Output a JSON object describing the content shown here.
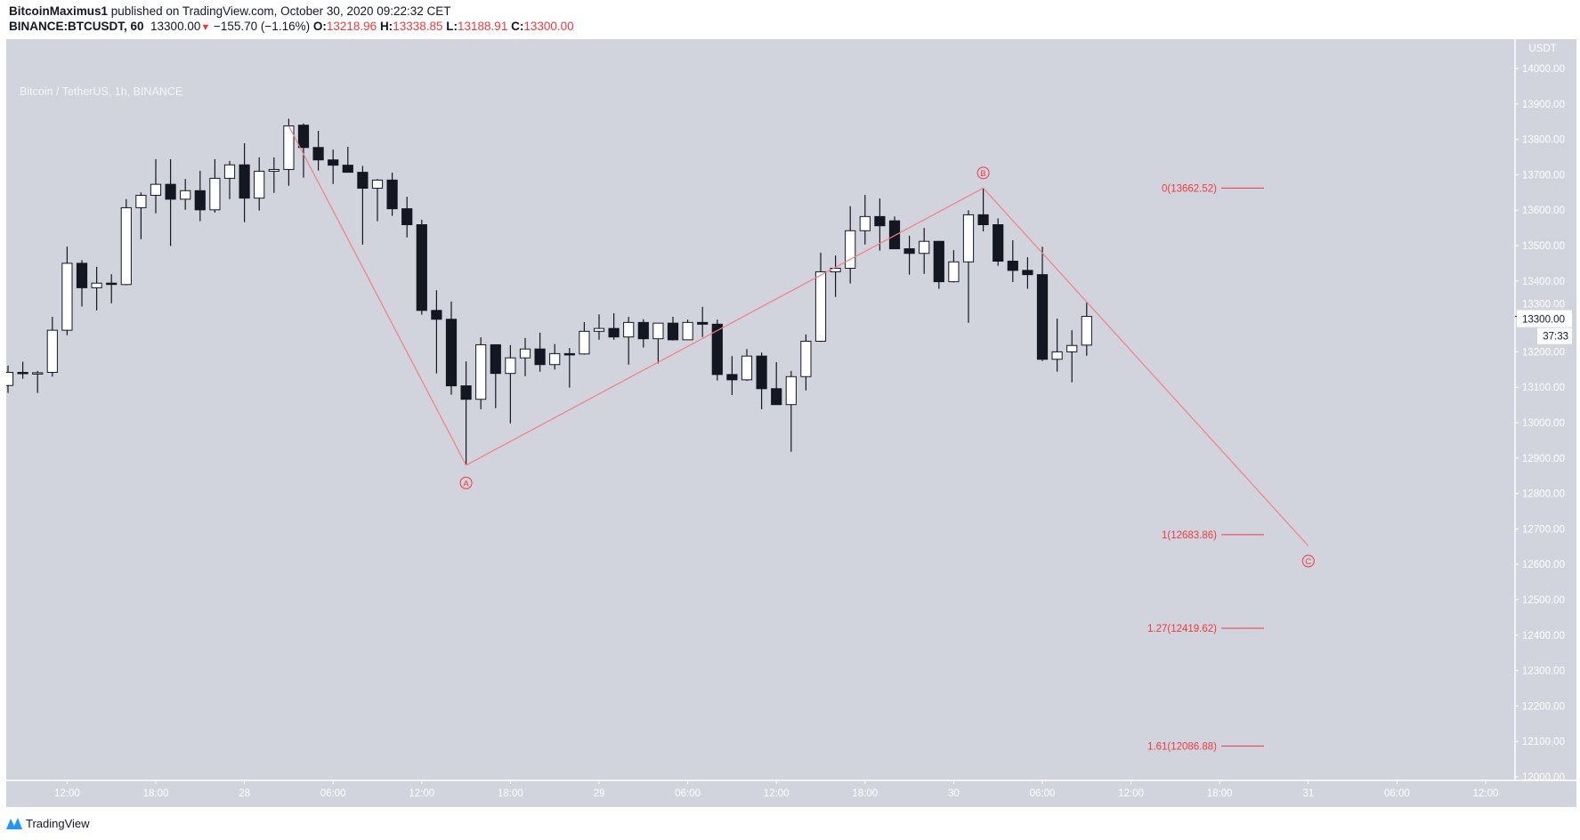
{
  "header": {
    "author": "BitcoinMaximus1",
    "published": " published on TradingView.com, October 30, 2020 09:22:32 CET",
    "symbol": "BINANCE:BTCUSDT, 60",
    "last": "13300.00",
    "change": "−155.70 (−1.16%)",
    "o_label": "O:",
    "o": "13218.96",
    "h_label": "H:",
    "h": "13338.85",
    "l_label": "L:",
    "l": "13188.91",
    "c_label": "C:",
    "c": "13300.00"
  },
  "legend": "Bitcoin / TetherUS, 1h, BINANCE",
  "footer": {
    "brand": "TradingView"
  },
  "colors": {
    "up_fill": "#ffffff",
    "down_fill": "#131722",
    "wick": "#131722",
    "accent": "#f0393f",
    "background": "#d1d4dc"
  },
  "chart_data": {
    "type": "candlestick",
    "title": "Bitcoin / TetherUS, 1h, BINANCE",
    "interval": "1h",
    "first_candle": "Oct 27 08:00",
    "ylim": [
      12000,
      14000
    ],
    "y_unit_label": "USDT",
    "y_ticks": [
      "14000.00",
      "13900.00",
      "13800.00",
      "13700.00",
      "13600.00",
      "13500.00",
      "13400.00",
      "13300.00",
      "13200.00",
      "13100.00",
      "13000.00",
      "12900.00",
      "12800.00",
      "12700.00",
      "12600.00",
      "12500.00",
      "12400.00",
      "12300.00",
      "12200.00",
      "12100.00",
      "12000.00"
    ],
    "x_ticks": [
      {
        "index": 4,
        "label": "12:00"
      },
      {
        "index": 10,
        "label": "18:00"
      },
      {
        "index": 16,
        "label": "28"
      },
      {
        "index": 22,
        "label": "06:00"
      },
      {
        "index": 28,
        "label": "12:00"
      },
      {
        "index": 34,
        "label": "18:00"
      },
      {
        "index": 40,
        "label": "29"
      },
      {
        "index": 46,
        "label": "06:00"
      },
      {
        "index": 52,
        "label": "12:00"
      },
      {
        "index": 58,
        "label": "18:00"
      },
      {
        "index": 64,
        "label": "30"
      },
      {
        "index": 70,
        "label": "06:00"
      },
      {
        "index": 76,
        "label": "12:00"
      },
      {
        "index": 82,
        "label": "18:00"
      },
      {
        "index": 88,
        "label": "31"
      },
      {
        "index": 94,
        "label": "06:00"
      },
      {
        "index": 100,
        "label": "12:00"
      }
    ],
    "ohlc": [
      [
        13105,
        13161,
        13084,
        13142
      ],
      [
        13142,
        13172,
        13124,
        13140
      ],
      [
        13140,
        13146,
        13084,
        13141
      ],
      [
        13142,
        13299,
        13130,
        13261
      ],
      [
        13261,
        13497,
        13247,
        13450
      ],
      [
        13450,
        13459,
        13328,
        13381
      ],
      [
        13381,
        13440,
        13317,
        13394
      ],
      [
        13394,
        13419,
        13337,
        13391
      ],
      [
        13390,
        13631,
        13388,
        13607
      ],
      [
        13607,
        13650,
        13518,
        13642
      ],
      [
        13642,
        13744,
        13591,
        13673
      ],
      [
        13673,
        13744,
        13499,
        13631
      ],
      [
        13631,
        13688,
        13601,
        13655
      ],
      [
        13655,
        13711,
        13569,
        13601
      ],
      [
        13601,
        13744,
        13593,
        13690
      ],
      [
        13690,
        13739,
        13631,
        13728
      ],
      [
        13728,
        13789,
        13566,
        13634
      ],
      [
        13634,
        13749,
        13599,
        13710
      ],
      [
        13710,
        13749,
        13649,
        13715
      ],
      [
        13715,
        13858,
        13669,
        13838
      ],
      [
        13840,
        13845,
        13692,
        13777
      ],
      [
        13777,
        13824,
        13712,
        13742
      ],
      [
        13742,
        13771,
        13674,
        13727
      ],
      [
        13727,
        13779,
        13716,
        13707
      ],
      [
        13707,
        13725,
        13503,
        13662
      ],
      [
        13662,
        13688,
        13569,
        13685
      ],
      [
        13685,
        13706,
        13584,
        13604
      ],
      [
        13604,
        13638,
        13523,
        13559
      ],
      [
        13559,
        13573,
        13305,
        13317
      ],
      [
        13317,
        13374,
        13139,
        13292
      ],
      [
        13292,
        13342,
        13079,
        13104
      ],
      [
        13104,
        13173,
        12880,
        13066
      ],
      [
        13066,
        13241,
        13038,
        13220
      ],
      [
        13220,
        13220,
        13041,
        13139
      ],
      [
        13139,
        13219,
        12998,
        13183
      ],
      [
        13183,
        13239,
        13131,
        13208
      ],
      [
        13208,
        13254,
        13144,
        13164
      ],
      [
        13164,
        13222,
        13150,
        13195
      ],
      [
        13195,
        13211,
        13099,
        13194
      ],
      [
        13194,
        13284,
        13192,
        13258
      ],
      [
        13258,
        13306,
        13234,
        13266
      ],
      [
        13266,
        13309,
        13234,
        13242
      ],
      [
        13242,
        13299,
        13164,
        13283
      ],
      [
        13283,
        13292,
        13212,
        13237
      ],
      [
        13237,
        13281,
        13167,
        13281
      ],
      [
        13281,
        13299,
        13232,
        13234
      ],
      [
        13234,
        13291,
        13234,
        13283
      ],
      [
        13283,
        13327,
        13242,
        13278
      ],
      [
        13278,
        13291,
        13119,
        13136
      ],
      [
        13136,
        13188,
        13078,
        13121
      ],
      [
        13121,
        13208,
        13118,
        13188
      ],
      [
        13188,
        13198,
        13038,
        13096
      ],
      [
        13096,
        13171,
        13050,
        13051
      ],
      [
        13051,
        13146,
        12918,
        13130
      ],
      [
        13130,
        13249,
        13091,
        13230
      ],
      [
        13230,
        13480,
        13228,
        13426
      ],
      [
        13426,
        13472,
        13355,
        13436
      ],
      [
        13436,
        13611,
        13393,
        13542
      ],
      [
        13542,
        13643,
        13503,
        13582
      ],
      [
        13582,
        13633,
        13486,
        13556
      ],
      [
        13570,
        13582,
        13491,
        13491
      ],
      [
        13491,
        13528,
        13418,
        13478
      ],
      [
        13478,
        13550,
        13420,
        13512
      ],
      [
        13512,
        13508,
        13378,
        13398
      ],
      [
        13398,
        13487,
        13396,
        13454
      ],
      [
        13454,
        13600,
        13282,
        13587
      ],
      [
        13587,
        13662.52,
        13540,
        13559
      ],
      [
        13559,
        13577,
        13443,
        13456
      ],
      [
        13456,
        13515,
        13397,
        13430
      ],
      [
        13430,
        13467,
        13378,
        13418
      ],
      [
        13418,
        13497,
        13174,
        13179
      ],
      [
        13179,
        13294,
        13144,
        13200
      ],
      [
        13200,
        13261,
        13114,
        13218
      ],
      [
        13218.96,
        13338.85,
        13188.91,
        13300
      ]
    ],
    "current_price": {
      "label": "13300.00",
      "countdown": "37:33",
      "value": 13300
    },
    "wave": [
      {
        "index": 19,
        "price": 13838,
        "label": ""
      },
      {
        "index": 31,
        "price": 12880,
        "label": "A"
      },
      {
        "index": 66,
        "price": 13662.52,
        "label": "B"
      },
      {
        "index": 88,
        "price": 12652,
        "label": "C"
      }
    ],
    "fib_levels": [
      {
        "ratio": "0",
        "price": 13662.52,
        "label": "0(13662.52)"
      },
      {
        "ratio": "1",
        "price": 12683.86,
        "label": "1(12683.86)"
      },
      {
        "ratio": "1.27",
        "price": 12419.62,
        "label": "1.27(12419.62)"
      },
      {
        "ratio": "1.61",
        "price": 12086.88,
        "label": "1.61(12086.88)"
      }
    ]
  }
}
